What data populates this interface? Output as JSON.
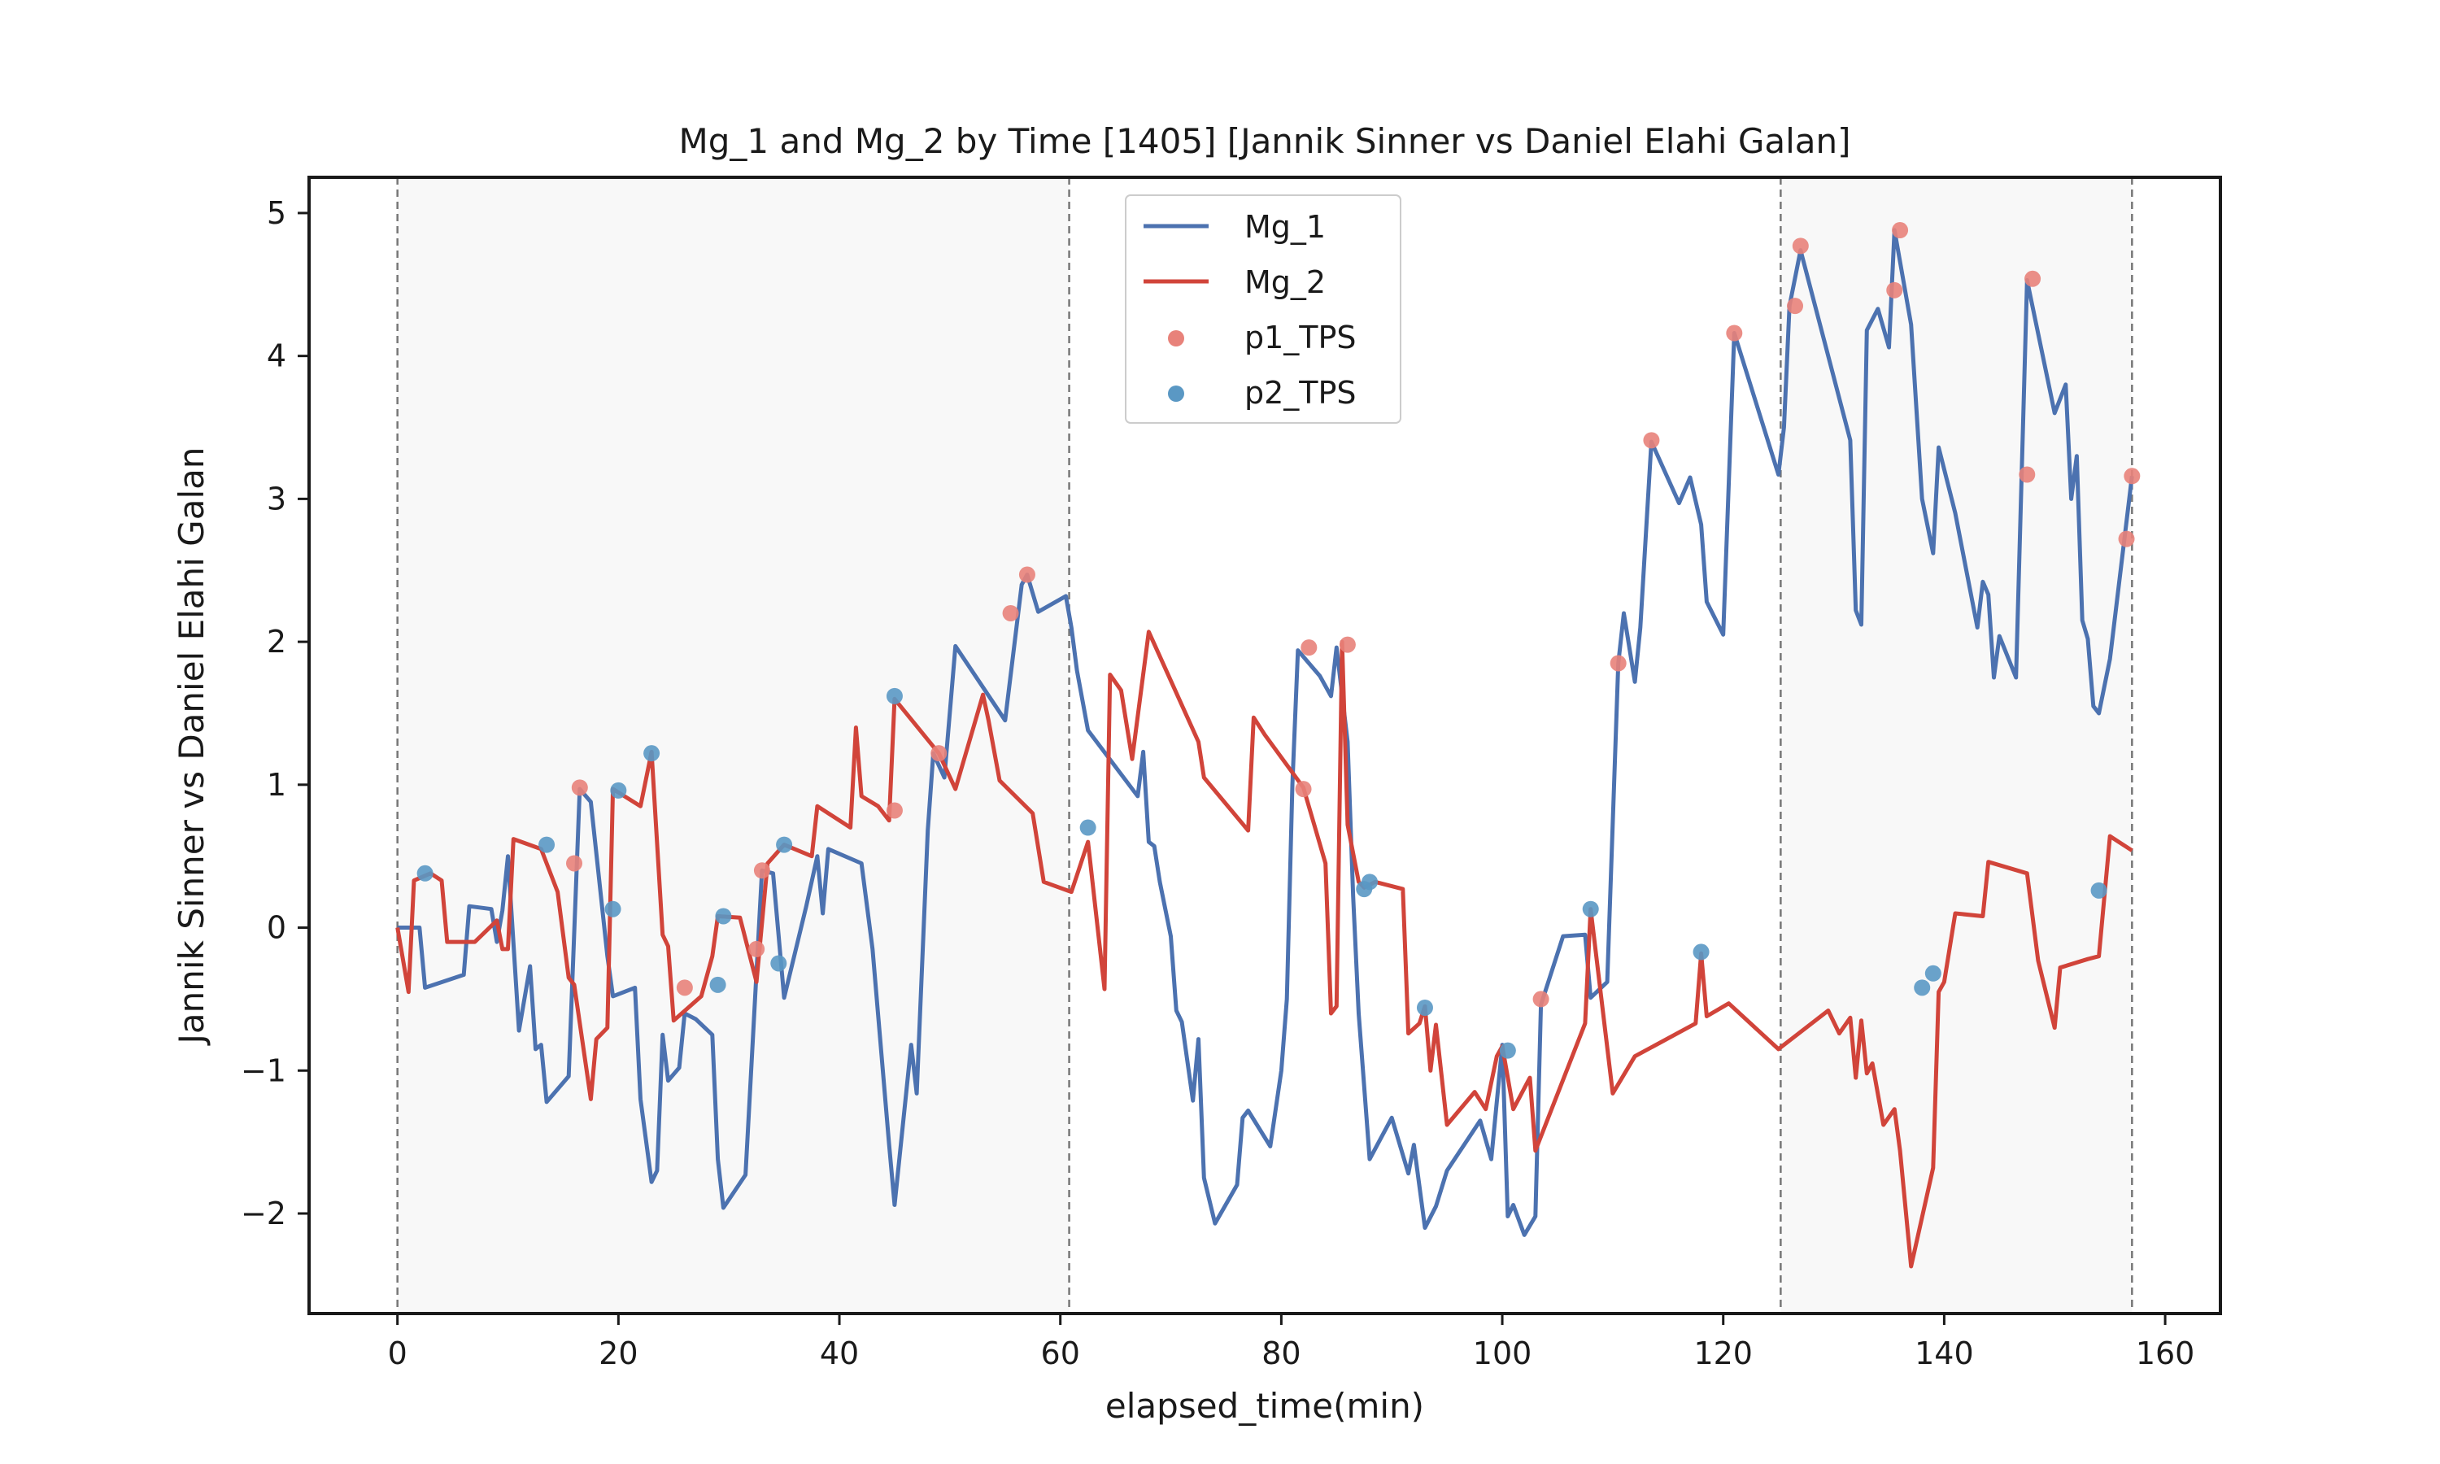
{
  "chart_data": {
    "type": "line",
    "title": "Mg_1 and Mg_2 by Time [1405] [Jannik Sinner vs Daniel Elahi Galan]",
    "xlabel": "elapsed_time(min)",
    "ylabel": "Jannik Sinner vs Daniel Elahi Galan",
    "xlim": [
      -8,
      165
    ],
    "ylim": [
      -2.7,
      5.25
    ],
    "xticks": [
      0,
      20,
      40,
      60,
      80,
      100,
      120,
      140,
      160
    ],
    "yticks": [
      -2,
      -1,
      0,
      1,
      2,
      3,
      4,
      5
    ],
    "xtick_labels": [
      "0",
      "20",
      "40",
      "60",
      "80",
      "100",
      "120",
      "140",
      "160"
    ],
    "ytick_labels": [
      "−2",
      "−1",
      "0",
      "1",
      "2",
      "3",
      "4",
      "5"
    ],
    "grid": false,
    "legend_position": "top-center",
    "set_boundaries": [
      0,
      60.8,
      125.2,
      157.0
    ],
    "shaded_sets": [
      [
        0,
        60.8
      ],
      [
        125.2,
        157.0
      ]
    ],
    "series": [
      {
        "name": "Mg_1",
        "color": "#4c72b0",
        "points": [
          [
            0,
            0
          ],
          [
            1,
            0
          ],
          [
            2,
            0
          ],
          [
            2.5,
            -0.42
          ],
          [
            6,
            -0.33
          ],
          [
            6.5,
            0.15
          ],
          [
            8.5,
            0.13
          ],
          [
            9,
            -0.1
          ],
          [
            9.5,
            0.12
          ],
          [
            10,
            0.5
          ],
          [
            11,
            -0.72
          ],
          [
            12,
            -0.27
          ],
          [
            12.5,
            -0.85
          ],
          [
            13,
            -0.82
          ],
          [
            13.5,
            -1.22
          ],
          [
            15.5,
            -1.04
          ],
          [
            16.5,
            0.97
          ],
          [
            17.5,
            0.88
          ],
          [
            19,
            -0.2
          ],
          [
            19.5,
            -0.48
          ],
          [
            21.5,
            -0.42
          ],
          [
            22,
            -1.2
          ],
          [
            23,
            -1.78
          ],
          [
            23.5,
            -1.7
          ],
          [
            24,
            -0.75
          ],
          [
            24.5,
            -1.07
          ],
          [
            25.5,
            -0.98
          ],
          [
            26,
            -0.6
          ],
          [
            27,
            -0.64
          ],
          [
            28.5,
            -0.75
          ],
          [
            29,
            -1.62
          ],
          [
            29.5,
            -1.96
          ],
          [
            31.5,
            -1.73
          ],
          [
            33,
            0.4
          ],
          [
            34,
            0.38
          ],
          [
            35,
            -0.49
          ],
          [
            37,
            0.15
          ],
          [
            38,
            0.5
          ],
          [
            38.5,
            0.1
          ],
          [
            39,
            0.55
          ],
          [
            42,
            0.45
          ],
          [
            43,
            -0.15
          ],
          [
            44.5,
            -1.52
          ],
          [
            45,
            -1.94
          ],
          [
            46.5,
            -0.82
          ],
          [
            47,
            -1.16
          ],
          [
            48,
            0.68
          ],
          [
            48.5,
            1.22
          ],
          [
            49.5,
            1.05
          ],
          [
            50.5,
            1.97
          ],
          [
            55,
            1.45
          ],
          [
            56.5,
            2.4
          ],
          [
            57,
            2.47
          ],
          [
            58,
            2.21
          ],
          [
            60.5,
            2.32
          ],
          [
            61,
            2.1
          ],
          [
            61.5,
            1.8
          ],
          [
            62.5,
            1.38
          ],
          [
            67,
            0.92
          ],
          [
            67.5,
            1.23
          ],
          [
            68,
            0.6
          ],
          [
            68.5,
            0.57
          ],
          [
            69,
            0.32
          ],
          [
            70,
            -0.06
          ],
          [
            70.5,
            -0.58
          ],
          [
            71,
            -0.66
          ],
          [
            72,
            -1.21
          ],
          [
            72.5,
            -0.78
          ],
          [
            73,
            -1.75
          ],
          [
            74,
            -2.07
          ],
          [
            76,
            -1.8
          ],
          [
            76.5,
            -1.33
          ],
          [
            77,
            -1.28
          ],
          [
            79,
            -1.53
          ],
          [
            80,
            -1.0
          ],
          [
            80.5,
            -0.5
          ],
          [
            81,
            1.0
          ],
          [
            81.5,
            1.94
          ],
          [
            83.5,
            1.76
          ],
          [
            84.5,
            1.62
          ],
          [
            85,
            1.96
          ],
          [
            86,
            1.3
          ],
          [
            86.5,
            0.22
          ],
          [
            87,
            -0.6
          ],
          [
            88,
            -1.62
          ],
          [
            90,
            -1.33
          ],
          [
            91.5,
            -1.72
          ],
          [
            92,
            -1.52
          ],
          [
            93,
            -2.1
          ],
          [
            94,
            -1.95
          ],
          [
            95,
            -1.7
          ],
          [
            98,
            -1.35
          ],
          [
            99,
            -1.62
          ],
          [
            100,
            -0.82
          ],
          [
            100.5,
            -2.02
          ],
          [
            101,
            -1.94
          ],
          [
            102,
            -2.15
          ],
          [
            103,
            -2.02
          ],
          [
            103.5,
            -0.54
          ],
          [
            105.5,
            -0.06
          ],
          [
            107.5,
            -0.05
          ],
          [
            108,
            -0.49
          ],
          [
            109.5,
            -0.38
          ],
          [
            110.5,
            1.85
          ],
          [
            111,
            2.2
          ],
          [
            112,
            1.72
          ],
          [
            112.5,
            2.1
          ],
          [
            113.5,
            3.4
          ],
          [
            116,
            2.97
          ],
          [
            117,
            3.15
          ],
          [
            118,
            2.82
          ],
          [
            118.5,
            2.28
          ],
          [
            120,
            2.05
          ],
          [
            121,
            4.16
          ],
          [
            125,
            3.17
          ],
          [
            125.5,
            3.5
          ],
          [
            126,
            4.35
          ],
          [
            127,
            4.74
          ],
          [
            131.5,
            3.41
          ],
          [
            132,
            2.22
          ],
          [
            132.5,
            2.12
          ],
          [
            133,
            4.18
          ],
          [
            134,
            4.33
          ],
          [
            135,
            4.06
          ],
          [
            135.5,
            4.88
          ],
          [
            137,
            4.22
          ],
          [
            138,
            3.0
          ],
          [
            139,
            2.62
          ],
          [
            139.5,
            3.36
          ],
          [
            141,
            2.9
          ],
          [
            143,
            2.1
          ],
          [
            143.5,
            2.42
          ],
          [
            144,
            2.33
          ],
          [
            144.5,
            1.75
          ],
          [
            145,
            2.04
          ],
          [
            146.5,
            1.75
          ],
          [
            147.5,
            4.53
          ],
          [
            150,
            3.6
          ],
          [
            151,
            3.8
          ],
          [
            151.5,
            3.0
          ],
          [
            152,
            3.3
          ],
          [
            152.5,
            2.15
          ],
          [
            153,
            2.02
          ],
          [
            153.5,
            1.55
          ],
          [
            154,
            1.5
          ],
          [
            155,
            1.88
          ],
          [
            157,
            3.16
          ]
        ]
      },
      {
        "name": "Mg_2",
        "color": "#d1443a",
        "points": [
          [
            0,
            0
          ],
          [
            1,
            -0.45
          ],
          [
            1.5,
            0.33
          ],
          [
            3,
            0.38
          ],
          [
            4,
            0.33
          ],
          [
            4.5,
            -0.1
          ],
          [
            7,
            -0.1
          ],
          [
            9,
            0.05
          ],
          [
            9.5,
            -0.15
          ],
          [
            10,
            -0.15
          ],
          [
            10.5,
            0.62
          ],
          [
            13,
            0.55
          ],
          [
            14.5,
            0.25
          ],
          [
            15.5,
            -0.35
          ],
          [
            16,
            -0.4
          ],
          [
            17.5,
            -1.2
          ],
          [
            18,
            -0.78
          ],
          [
            19,
            -0.7
          ],
          [
            19.5,
            0.97
          ],
          [
            22,
            0.85
          ],
          [
            23,
            1.23
          ],
          [
            24,
            -0.05
          ],
          [
            24.5,
            -0.13
          ],
          [
            25,
            -0.65
          ],
          [
            27.5,
            -0.48
          ],
          [
            28.5,
            -0.2
          ],
          [
            29,
            0.08
          ],
          [
            31,
            0.07
          ],
          [
            32.5,
            -0.38
          ],
          [
            33.5,
            0.45
          ],
          [
            35,
            0.58
          ],
          [
            37.5,
            0.5
          ],
          [
            38,
            0.85
          ],
          [
            41,
            0.7
          ],
          [
            41.5,
            1.4
          ],
          [
            42,
            0.92
          ],
          [
            43.5,
            0.85
          ],
          [
            44.5,
            0.75
          ],
          [
            45,
            1.6
          ],
          [
            49,
            1.22
          ],
          [
            50.5,
            0.97
          ],
          [
            53,
            1.63
          ],
          [
            53.5,
            1.45
          ],
          [
            54.5,
            1.03
          ],
          [
            57.5,
            0.8
          ],
          [
            58.5,
            0.32
          ],
          [
            61,
            0.25
          ],
          [
            62.5,
            0.6
          ],
          [
            64,
            -0.43
          ],
          [
            64.5,
            1.77
          ],
          [
            65.5,
            1.66
          ],
          [
            66.5,
            1.18
          ],
          [
            68,
            2.07
          ],
          [
            72.5,
            1.3
          ],
          [
            73,
            1.05
          ],
          [
            77,
            0.68
          ],
          [
            77.5,
            1.47
          ],
          [
            78.5,
            1.35
          ],
          [
            82,
            0.98
          ],
          [
            84,
            0.45
          ],
          [
            84.5,
            -0.6
          ],
          [
            85,
            -0.55
          ],
          [
            85.5,
            2.0
          ],
          [
            86,
            0.72
          ],
          [
            87,
            0.32
          ],
          [
            87.5,
            0.28
          ],
          [
            88.5,
            0.32
          ],
          [
            91,
            0.27
          ],
          [
            91.5,
            -0.74
          ],
          [
            92.5,
            -0.67
          ],
          [
            93,
            -0.55
          ],
          [
            93.5,
            -1.0
          ],
          [
            94,
            -0.68
          ],
          [
            95,
            -1.38
          ],
          [
            97.5,
            -1.15
          ],
          [
            98.5,
            -1.27
          ],
          [
            99.5,
            -0.9
          ],
          [
            100,
            -0.83
          ],
          [
            101,
            -1.27
          ],
          [
            102.5,
            -1.05
          ],
          [
            103,
            -1.56
          ],
          [
            107.5,
            -0.67
          ],
          [
            108,
            0.13
          ],
          [
            110,
            -1.16
          ],
          [
            112,
            -0.9
          ],
          [
            117.5,
            -0.67
          ],
          [
            118,
            -0.18
          ],
          [
            118.5,
            -0.62
          ],
          [
            120.5,
            -0.53
          ],
          [
            125,
            -0.85
          ],
          [
            129.5,
            -0.58
          ],
          [
            130.5,
            -0.74
          ],
          [
            131.5,
            -0.63
          ],
          [
            132,
            -1.05
          ],
          [
            132.5,
            -0.65
          ],
          [
            133,
            -1.02
          ],
          [
            133.5,
            -0.95
          ],
          [
            134.5,
            -1.38
          ],
          [
            135.5,
            -1.27
          ],
          [
            136,
            -1.56
          ],
          [
            137,
            -2.37
          ],
          [
            139,
            -1.68
          ],
          [
            139.5,
            -0.45
          ],
          [
            140,
            -0.38
          ],
          [
            141,
            0.1
          ],
          [
            143.5,
            0.08
          ],
          [
            144,
            0.46
          ],
          [
            147.5,
            0.38
          ],
          [
            148.5,
            -0.23
          ],
          [
            150,
            -0.7
          ],
          [
            150.5,
            -0.28
          ],
          [
            153,
            -0.22
          ],
          [
            154,
            -0.2
          ],
          [
            155,
            0.64
          ],
          [
            157,
            0.54
          ]
        ]
      }
    ],
    "scatter": [
      {
        "name": "p1_TPS",
        "color": "#e8827a",
        "points": [
          [
            16.5,
            0.98
          ],
          [
            16,
            0.45
          ],
          [
            26,
            -0.42
          ],
          [
            32.5,
            -0.15
          ],
          [
            33,
            0.4
          ],
          [
            45,
            0.82
          ],
          [
            49,
            1.22
          ],
          [
            55.5,
            2.2
          ],
          [
            57,
            2.47
          ],
          [
            82.5,
            1.96
          ],
          [
            86,
            1.98
          ],
          [
            82,
            0.97
          ],
          [
            103.5,
            -0.5
          ],
          [
            110.5,
            1.85
          ],
          [
            113.5,
            3.41
          ],
          [
            121,
            4.16
          ],
          [
            126.5,
            4.35
          ],
          [
            127,
            4.77
          ],
          [
            135.5,
            4.46
          ],
          [
            136,
            4.88
          ],
          [
            147.5,
            3.17
          ],
          [
            148,
            4.54
          ],
          [
            156.5,
            2.72
          ],
          [
            157,
            3.16
          ]
        ]
      },
      {
        "name": "p2_TPS",
        "color": "#5a98c4",
        "points": [
          [
            2.5,
            0.38
          ],
          [
            13.5,
            0.58
          ],
          [
            19.5,
            0.13
          ],
          [
            20,
            0.96
          ],
          [
            23,
            1.22
          ],
          [
            29,
            -0.4
          ],
          [
            29.5,
            0.08
          ],
          [
            35,
            0.58
          ],
          [
            34.5,
            -0.25
          ],
          [
            45,
            1.62
          ],
          [
            62.5,
            0.7
          ],
          [
            87.5,
            0.27
          ],
          [
            88,
            0.32
          ],
          [
            93,
            -0.56
          ],
          [
            100.5,
            -0.86
          ],
          [
            108,
            0.13
          ],
          [
            118,
            -0.17
          ],
          [
            138,
            -0.42
          ],
          [
            139,
            -0.32
          ],
          [
            154,
            0.26
          ]
        ]
      }
    ]
  }
}
